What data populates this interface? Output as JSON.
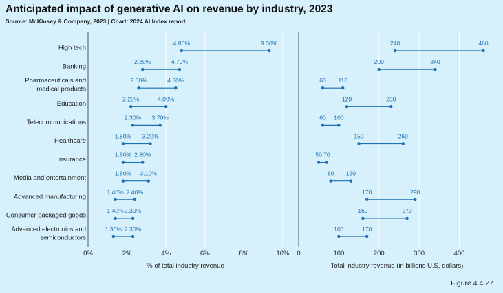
{
  "header": {
    "title": "Anticipated impact of generative AI on revenue by industry, 2023",
    "source": "Source: McKinsey & Company, 2023 | Chart: 2024 AI Index report"
  },
  "footer": {
    "figure": "Figure 4.4.27"
  },
  "colors": {
    "accent": "#1f6fb5",
    "background": "#d6f1fb",
    "grid": "#ffffff"
  },
  "chart_data": [
    {
      "type": "dumbbell",
      "title": "Anticipated impact of generative AI on revenue by industry, 2023",
      "xlabel": "% of total industry revenue",
      "xlim": [
        0,
        10
      ],
      "xticks": [
        0,
        2,
        4,
        6,
        8,
        10
      ],
      "tick_labels": [
        "0%",
        "2%",
        "4%",
        "6%",
        "8%",
        "10%"
      ],
      "categories": [
        [
          "High tech"
        ],
        [
          "Banking"
        ],
        [
          "Pharmaceuticals and",
          "medical products"
        ],
        [
          "Education"
        ],
        [
          "Telecommunications"
        ],
        [
          "Healthcare"
        ],
        [
          "Insurance"
        ],
        [
          "Media and entertainment"
        ],
        [
          "Advanced manufacturing"
        ],
        [
          "Consumer packaged goods"
        ],
        [
          "Advanced electronics and",
          "semiconductors"
        ]
      ],
      "low": [
        4.8,
        2.8,
        2.6,
        2.2,
        2.3,
        1.8,
        1.8,
        1.8,
        1.4,
        1.4,
        1.3
      ],
      "high": [
        9.3,
        4.7,
        4.5,
        4.0,
        3.7,
        3.2,
        2.8,
        3.1,
        2.4,
        2.3,
        2.3
      ],
      "low_labels": [
        "4.80%",
        "2.80%",
        "2.60%",
        "2.20%",
        "2.30%",
        "1.80%",
        "1.80%",
        "1.80%",
        "1.40%",
        "1.40%",
        "1.30%"
      ],
      "high_labels": [
        "9.30%",
        "4.70%",
        "4.50%",
        "4.00%",
        "3.70%",
        "3.20%",
        "2.80%",
        "3.10%",
        "2.40%",
        "2.30%",
        "2.30%"
      ]
    },
    {
      "type": "dumbbell",
      "xlabel": "Total industry revenue (in billions U.S. dollars)",
      "xlim": [
        0,
        490
      ],
      "xticks": [
        0,
        100,
        200,
        300,
        400
      ],
      "tick_labels": [
        "0",
        "100",
        "200",
        "300",
        "400"
      ],
      "low": [
        240,
        200,
        60,
        120,
        60,
        150,
        50,
        80,
        170,
        160,
        100
      ],
      "high": [
        460,
        340,
        110,
        230,
        100,
        260,
        70,
        130,
        290,
        270,
        170
      ],
      "low_labels": [
        "240",
        "200",
        "60",
        "120",
        "60",
        "150",
        "50",
        "80",
        "170",
        "160",
        "100"
      ],
      "high_labels": [
        "460",
        "340",
        "110",
        "230",
        "100",
        "260",
        "70",
        "130",
        "290",
        "270",
        "170"
      ]
    }
  ]
}
